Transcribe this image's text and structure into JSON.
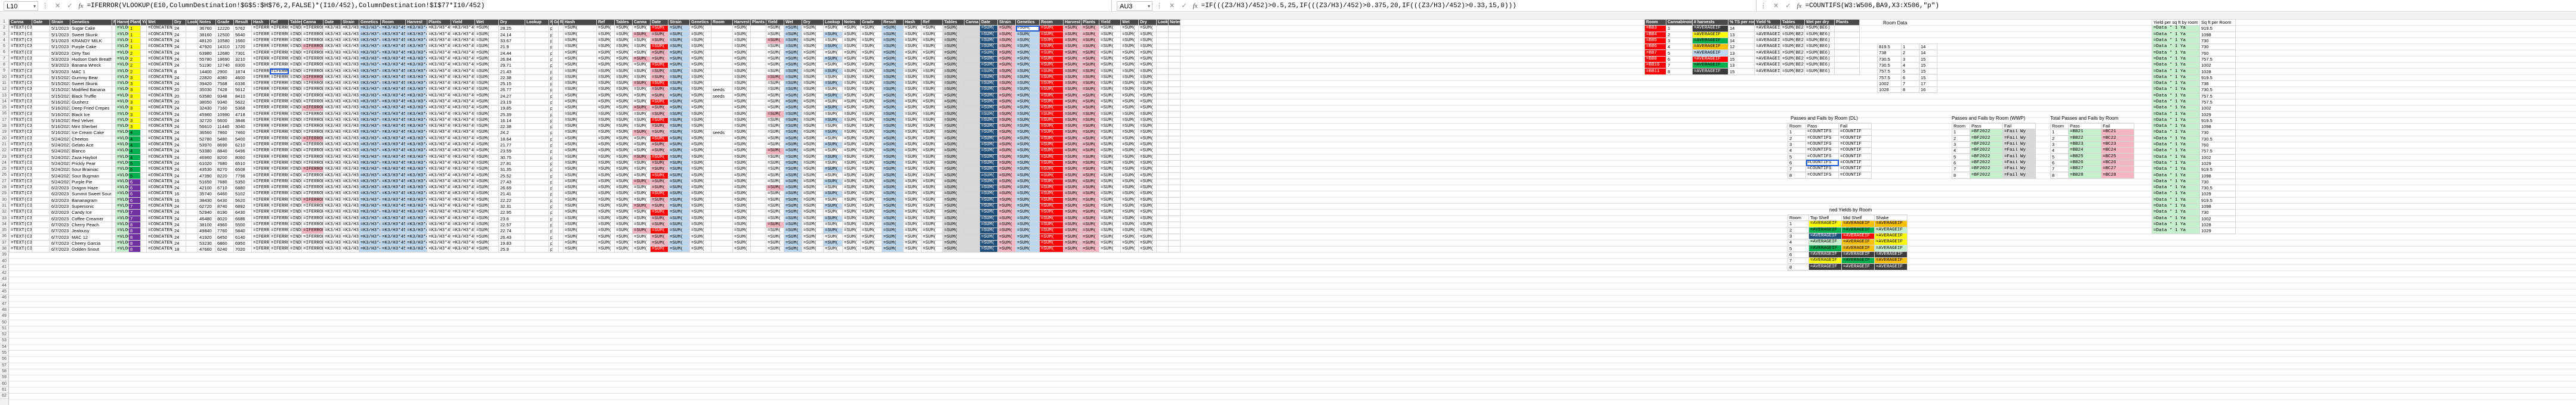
{
  "left_pane": {
    "name_box": "L10",
    "formula": "=IFERROR(VLOOKUP(E10,ColumnDestination!$G$5:$H$76,2,FALSE)*(I10/452),ColumnDestination!$I$77*I10/452)"
  },
  "right_pane": {
    "name_box": "AU3",
    "formula": "=IF(((Z3/H3)/452)>0.5,25,IF(((Z3/H3)/452)>0.375,20,IF(((Z3/H3)/452)>0.33,15,0)))"
  },
  "third_pane": {
    "formula": "=COUNTIFS(W3:W506,BA9,X3:X506,\"p\")"
  },
  "headers": [
    "Canna",
    "Date",
    "Strain",
    "Genetics",
    "Room",
    "Harvest",
    "Plants",
    "Yield",
    "Wet",
    "Dry",
    "Lookup",
    "Notes",
    "Grade",
    "Result",
    "Hash",
    "Ref",
    "Tables"
  ],
  "rows": [
    {
      "id": "=TEXT(C3",
      "date": "5/1/2023",
      "strain": "Sugar Cake",
      "room": "1",
      "n1": "24",
      "n2": "36760",
      "n3": "12220",
      "n4": "5762",
      "n5": "28.25"
    },
    {
      "id": "=TEXT(C3",
      "date": "5/1/2023",
      "strain": "Sweet Skunk",
      "room": "1",
      "n1": "24",
      "n2": "38160",
      "n3": "12500",
      "n4": "5640",
      "n5": "24.14"
    },
    {
      "id": "=TEXT(C3",
      "date": "5/1/2023",
      "strain": "KRANDY MILK",
      "room": "1",
      "n1": "24",
      "n2": "48120",
      "n3": "10580",
      "n4": "1660",
      "n5": "33.67"
    },
    {
      "id": "=TEXT(C3",
      "date": "5/1/2023",
      "strain": "Purple Cake",
      "room": "1",
      "n1": "24",
      "n2": "47920",
      "n3": "14310",
      "n4": "1720",
      "n5": "21.9"
    },
    {
      "id": "=TEXT(C3",
      "date": "5/3/2023",
      "strain": "Dirty Taxi",
      "room": "2",
      "n1": "24",
      "n2": "63980",
      "n3": "12680",
      "n4": "7301",
      "n5": "24.44"
    },
    {
      "id": "=TEXT(C3",
      "date": "5/3/2023",
      "strain": "Hudson Dark Breath",
      "room": "2",
      "n1": "24",
      "n2": "55780",
      "n3": "18690",
      "n4": "3210",
      "n5": "26.84"
    },
    {
      "id": "=TEXT(C3",
      "date": "5/3/2023",
      "strain": "Banana Wreck",
      "room": "2",
      "n1": "24",
      "n2": "51190",
      "n3": "12740",
      "n4": "8300",
      "n5": "29.71"
    },
    {
      "id": "=TEXT(C3",
      "date": "5/3/2023",
      "strain": "MAC 1",
      "room": "2",
      "n1": "8",
      "n2": "14400",
      "n3": "2900",
      "n4": "1874",
      "n5": "21.43"
    },
    {
      "id": "=TEXT(C3",
      "date": "5/15/2023",
      "strain": "Gummy Bear",
      "room": "3",
      "n1": "24",
      "n2": "22820",
      "n3": "4080",
      "n4": "4600",
      "n5": "22.38"
    },
    {
      "id": "=TEXT(C3",
      "date": "5/15/2023",
      "strain": "Sweet Skunk",
      "room": "3",
      "n1": "24",
      "n2": "39420",
      "n3": "7568",
      "n4": "6336",
      "n5": "25.15"
    },
    {
      "id": "=TEXT(C3",
      "date": "5/15/2023",
      "strain": "Modified Banana",
      "room": "3",
      "n1": "20",
      "n2": "35030",
      "n3": "7428",
      "n4": "5612",
      "n5": "26.77"
    },
    {
      "id": "=TEXT(C3",
      "date": "5/15/2023",
      "strain": "Black Truffle",
      "room": "3",
      "n1": "20",
      "n2": "63580",
      "n3": "9348",
      "n4": "8410",
      "n5": "24.27"
    },
    {
      "id": "=TEXT(C3",
      "date": "5/16/2023",
      "strain": "Gusherz",
      "room": "3",
      "n1": "20",
      "n2": "38050",
      "n3": "9340",
      "n4": "5622",
      "n5": "23.19"
    },
    {
      "id": "=TEXT(C3",
      "date": "5/16/2023",
      "strain": "Deep Fried Crepes",
      "room": "3",
      "n1": "24",
      "n2": "32430",
      "n3": "7160",
      "n4": "5368",
      "n5": "19.85"
    },
    {
      "id": "=TEXT(C3",
      "date": "5/16/2023",
      "strain": "Black Ice",
      "room": "3",
      "n1": "24",
      "n2": "45960",
      "n3": "10990",
      "n4": "4718",
      "n5": "25.39"
    },
    {
      "id": "=TEXT(C3",
      "date": "5/16/2023",
      "strain": "Red Velvet",
      "room": "3",
      "n1": "24",
      "n2": "32720",
      "n3": "5600",
      "n4": "3846",
      "n5": "16.14"
    },
    {
      "id": "=TEXT(C3",
      "date": "5/16/2023",
      "strain": "Mint Sherbet",
      "room": "3",
      "n1": "24",
      "n2": "56610",
      "n3": "11440",
      "n4": "3040",
      "n5": "22.38"
    },
    {
      "id": "=TEXT(C3",
      "date": "5/16/2023",
      "strain": "Ice Cream Cake",
      "room": "4",
      "n1": "24",
      "n2": "36560",
      "n3": "7860",
      "n4": "7460",
      "n5": "24.2"
    },
    {
      "id": "=TEXT(C3",
      "date": "5/24/2023",
      "strain": "Cheetos",
      "room": "4",
      "n1": "24",
      "n2": "52780",
      "n3": "5480",
      "n4": "5400",
      "n5": "18.64"
    },
    {
      "id": "=TEXT(C3",
      "date": "5/24/2023",
      "strain": "Gelato Ace",
      "room": "4",
      "n1": "24",
      "n2": "53970",
      "n3": "8690",
      "n4": "6210",
      "n5": "21.77"
    },
    {
      "id": "=TEXT(C3",
      "date": "5/24/2023",
      "strain": "Blanco",
      "room": "4",
      "n1": "24",
      "n2": "53380",
      "n3": "8840",
      "n4": "6496",
      "n5": "23.59"
    },
    {
      "id": "=TEXT(C3",
      "date": "5/24/2023",
      "strain": "Zaza Haybot",
      "room": "4",
      "n1": "24",
      "n2": "46960",
      "n3": "8200",
      "n4": "8060",
      "n5": "30.75"
    },
    {
      "id": "=TEXT(C3",
      "date": "5/24/2023",
      "strain": "Prickly Pear",
      "room": "5",
      "n1": "24",
      "n2": "61020",
      "n3": "7680",
      "n4": "6510",
      "n5": "27.81"
    },
    {
      "id": "=TEXT(C3",
      "date": "5/24/2023",
      "strain": "Sour Brainiac",
      "room": "5",
      "n1": "24",
      "n2": "43530",
      "n3": "8270",
      "n4": "6508",
      "n5": "31.35"
    },
    {
      "id": "=TEXT(C3",
      "date": "5/24/2023",
      "strain": "Sour Bugman",
      "room": "5",
      "n1": "24",
      "n2": "47390",
      "n3": "8220",
      "n4": "7796",
      "n5": "25.52"
    },
    {
      "id": "=TEXT(C3",
      "date": "5/24/2023",
      "strain": "Purple Pie",
      "room": "6",
      "n1": "24",
      "n2": "51650",
      "n3": "7680",
      "n4": "5350",
      "n5": "27.43"
    },
    {
      "id": "=TEXT(C3",
      "date": "6/2/2023",
      "strain": "Dragon Haze",
      "room": "6",
      "n1": "24",
      "n2": "42100",
      "n3": "6710",
      "n4": "6880",
      "n5": "26.69"
    },
    {
      "id": "=TEXT(C3",
      "date": "6/2/2023",
      "strain": "Summit Sweet Sours",
      "room": "6",
      "n1": "16",
      "n2": "35740",
      "n3": "6460",
      "n4": "5102",
      "n5": "21.41"
    },
    {
      "id": "=TEXT(C3",
      "date": "6/2/2023",
      "strain": "Bananagram",
      "room": "6",
      "n1": "16",
      "n2": "38430",
      "n3": "6430",
      "n4": "5620",
      "n5": "22.22"
    },
    {
      "id": "=TEXT(C3",
      "date": "6/2/2023",
      "strain": "Supersonic",
      "room": "7",
      "n1": "24",
      "n2": "62720",
      "n3": "8740",
      "n4": "6892",
      "n5": "32.31"
    },
    {
      "id": "=TEXT(C3",
      "date": "6/2/2023",
      "strain": "Candy Ice",
      "room": "7",
      "n1": "24",
      "n2": "52940",
      "n3": "8190",
      "n4": "6430",
      "n5": "22.95"
    },
    {
      "id": "=TEXT(C3",
      "date": "6/2/2023",
      "strain": "Coffee Creamer",
      "room": "7",
      "n1": "24",
      "n2": "46480",
      "n3": "8020",
      "n4": "6686",
      "n5": "23.6"
    },
    {
      "id": "=TEXT(C3",
      "date": "6/7/2023",
      "strain": "Cherry Peach",
      "room": "8",
      "n1": "24",
      "n2": "38100",
      "n3": "4960",
      "n4": "5500",
      "n5": "22.57"
    },
    {
      "id": "=TEXT(C3",
      "date": "6/7/2023",
      "strain": "Jealousy",
      "room": "8",
      "n1": "24",
      "n2": "49840",
      "n3": "7760",
      "n4": "5840",
      "n5": "22.74"
    },
    {
      "id": "=TEXT(C3",
      "date": "6/7/2023",
      "strain": "MAC 12",
      "room": "8",
      "n1": "24",
      "n2": "41920",
      "n3": "6450",
      "n4": "6140",
      "n5": "26.43"
    },
    {
      "id": "=TEXT(C3",
      "date": "6/7/2023",
      "strain": "Cheery Garcia",
      "room": "8",
      "n1": "24",
      "n2": "53230",
      "n3": "6860",
      "n4": "6950",
      "n5": "19.83"
    },
    {
      "id": "=TEXT(C3",
      "date": "6/7/2023",
      "strain": "Golden Snout",
      "room": "8",
      "n1": "18",
      "n2": "47660",
      "n3": "6240",
      "n4": "7020",
      "n5": "25.9"
    }
  ],
  "f": {
    "vlookup": "=VLOOKUP",
    "concat": "=CONCATENATE",
    "iferror": "=IFERROR(V",
    "index": "=INDEX(K",
    "calc1": "=K3/H3*452",
    "sum": "=SUM(",
    "count": "=COUNTIF",
    "avg": "=AVERAGEIF",
    "seeds": "seeds",
    "p": "p"
  },
  "room_table": {
    "headers": [
      "Room",
      "Cannabinoids",
      "# harvests",
      "% TS per room",
      "Yield %",
      "Tables",
      "Wet per dry",
      "Plants"
    ],
    "rows": [
      {
        "code": "=BB3",
        "room": "1",
        "h": "14",
        "t": "=SUM(BE2:",
        "p": "=SUM(BE6)"
      },
      {
        "code": "=BB4",
        "room": "2",
        "h": "13",
        "t": "=SUM(BE2:",
        "p": "=SUM(BE6)"
      },
      {
        "code": "=BB5",
        "room": "3",
        "h": "14",
        "t": "=SUM(BE2:",
        "p": "=SUM(BE6)"
      },
      {
        "code": "=BB6",
        "room": "4",
        "h": "12",
        "t": "=SUM(BE2:",
        "p": "=SUM(BE6)"
      },
      {
        "code": "=BB7",
        "room": "5",
        "h": "13",
        "t": "=SUM(BE2:",
        "p": "=SUM(BE6)"
      },
      {
        "code": "=BB8",
        "room": "6",
        "h": "15",
        "t": "=SUM(BE2:",
        "p": "=SUM(BE6)"
      },
      {
        "code": "=BB10",
        "room": "7",
        "h": "13",
        "t": "=SUM(BE2:",
        "p": "=SUM(BE6)"
      },
      {
        "code": "=BB11",
        "room": "8",
        "h": "15",
        "t": "=SUM(BE2:",
        "p": "=SUM(BE6)"
      }
    ]
  },
  "room_data": {
    "title": "Room Data",
    "rows": [
      [
        "819.5",
        "1",
        "14"
      ],
      [
        "738",
        "2",
        "14"
      ],
      [
        "730.5",
        "3",
        "15"
      ],
      [
        "730.5",
        "4",
        "15"
      ],
      [
        "757.5",
        "5",
        "15"
      ],
      [
        "757.5",
        "6",
        "15"
      ],
      [
        "1002",
        "7",
        "17"
      ],
      [
        "1028",
        "8",
        "16"
      ]
    ]
  },
  "yield_panel": {
    "h1": "Yield per sq ft by room",
    "h2": "Sq ft per Room",
    "rows": [
      [
        "=Data * 1 Ya",
        "919.5"
      ],
      [
        "=Data * 1 Ya",
        "1098"
      ],
      [
        "=Data * 1 Ya",
        "730"
      ],
      [
        "=Data * 1 Ya",
        "730"
      ],
      [
        "=Data * 1 Ya",
        "760"
      ],
      [
        "=Data * 1 Ya",
        "757.5"
      ],
      [
        "=Data * 1 Ya",
        "1002"
      ],
      [
        "=Data * 1 Ya",
        "1028"
      ],
      [
        "=Data * 1 Ya",
        "919.5"
      ],
      [
        "=Data * 1 Ya",
        "738"
      ],
      [
        "=Data * 1 Ya",
        "730.5"
      ],
      [
        "=Data * 1 Ya",
        "757.5"
      ],
      [
        "=Data * 1 Ya",
        "757.5"
      ],
      [
        "=Data * 1 Ya",
        "1002"
      ],
      [
        "=Data * 1 Ya",
        "1029"
      ],
      [
        "=Data * 1 Ya",
        "919.5"
      ],
      [
        "=Data * 1 Ya",
        "1098"
      ],
      [
        "=Data * 1 Ya",
        "730"
      ],
      [
        "=Data * 1 Ya",
        "730.5"
      ],
      [
        "=Data * 1 Ya",
        "760"
      ],
      [
        "=Data * 1 Ya",
        "757.5"
      ],
      [
        "=Data * 1 Ya",
        "1002"
      ],
      [
        "=Data * 1 Ya",
        "1029"
      ],
      [
        "=Data * 1 Ya",
        "919.5"
      ],
      [
        "=Data * 1 Ya",
        "1098"
      ],
      [
        "=Data * 1 Ya",
        "730"
      ],
      [
        "=Data * 1 Ya",
        "730.5"
      ],
      [
        "=Data * 1 Ya",
        "1029"
      ],
      [
        "=Data * 1 Ya",
        "919.5"
      ],
      [
        "=Data * 1 Ya",
        "1098"
      ],
      [
        "=Data * 1 Ya",
        "730"
      ],
      [
        "=Data * 1 Ya",
        "1002"
      ],
      [
        "=Data * 1 Ya",
        "1028"
      ],
      [
        "=Data * 1 Ya",
        "1029"
      ]
    ]
  },
  "passfail_room": {
    "title": "Passes and Fails by Room (DL)",
    "headers": [
      "Room",
      "Pass",
      "Fail"
    ],
    "rows": [
      [
        "1",
        "=COUNTIFS",
        "=COUNTIF"
      ],
      [
        "2",
        "=COUNTIFS",
        "=COUNTIF"
      ],
      [
        "3",
        "=COUNTIFS",
        "=COUNTIF"
      ],
      [
        "4",
        "=COUNTIFS",
        "=COUNTIF"
      ],
      [
        "5",
        "=COUNTIFS",
        "=COUNTIF"
      ],
      [
        "6",
        "=COUNTIFS",
        "=COUNTIF"
      ],
      [
        "7",
        "=COUNTIFS",
        "=COUNTIF"
      ],
      [
        "8",
        "=COUNTIFS",
        "=COUNTIF"
      ]
    ]
  },
  "passfail_wwp": {
    "title": "Passes and Fails by Room (WWP)",
    "headers": [
      "Room",
      "Pass",
      "Fail"
    ],
    "rows": [
      [
        "1",
        "=BF2022",
        "=Fail Wy"
      ],
      [
        "2",
        "=BF2022",
        "=Fail Wy"
      ],
      [
        "3",
        "=BF2022",
        "=Fail Wy"
      ],
      [
        "4",
        "=BF2022",
        "=Fail Wy"
      ],
      [
        "5",
        "=BF2022",
        "=Fail Wy"
      ],
      [
        "6",
        "=BF2022",
        "=Fail Wy"
      ],
      [
        "7",
        "=BF2022",
        "=Fail Wy"
      ],
      [
        "8",
        "=BF2022",
        "=Fail Wy"
      ]
    ]
  },
  "passfail_total": {
    "title": "Total Passes and Fails by Room",
    "headers": [
      "Room",
      "Pass",
      "Fail"
    ],
    "rows": [
      [
        "1",
        "=BB21",
        "=BC21"
      ],
      [
        "2",
        "=BB22",
        "=BC22"
      ],
      [
        "3",
        "=BB23",
        "=BC23"
      ],
      [
        "4",
        "=BB24",
        "=BC24"
      ],
      [
        "5",
        "=BB25",
        "=BC25"
      ],
      [
        "6",
        "=BB26",
        "=BC26"
      ],
      [
        "7",
        "=BB27",
        "=BC27"
      ],
      [
        "8",
        "=BB28",
        "=BC28"
      ]
    ]
  },
  "yields_by_room": {
    "title": "ned Yields by Room",
    "headers": [
      "Room",
      "Top Shelf",
      "Mid Shelf",
      "Shake"
    ],
    "rows": [
      [
        "1",
        "=AVERAGEIF",
        "=AVERAGEIF",
        "=AVERAGEIF"
      ],
      [
        "2",
        "=AVERAGEIF",
        "=AVERAGEIF",
        "=AVERAGEIF"
      ],
      [
        "3",
        "=AVERAGEIF",
        "=AVERAGEIF",
        "=AVERAGEIF"
      ],
      [
        "4",
        "=AVERAGEIF",
        "=AVERAGEIF",
        "=AVERAGEIF"
      ],
      [
        "5",
        "=AVERAGEIF",
        "=AVERAGEIF",
        "=AVERAGEIF"
      ],
      [
        "6",
        "=AVERAGEIF",
        "=AVERAGEIF",
        "=AVERAGEIF"
      ],
      [
        "7",
        "=AVERAGEIF",
        "=AVERAGEIF",
        "=AVERAGEIF"
      ],
      [
        "8",
        "=AVERAGEIF",
        "=AVERAGEIF",
        "=AVERAGEIF"
      ]
    ]
  },
  "colors": {
    "header_bg": "#4a4a4a",
    "grid_line": "#e1e1e1",
    "selection": "#1a5ad7"
  }
}
